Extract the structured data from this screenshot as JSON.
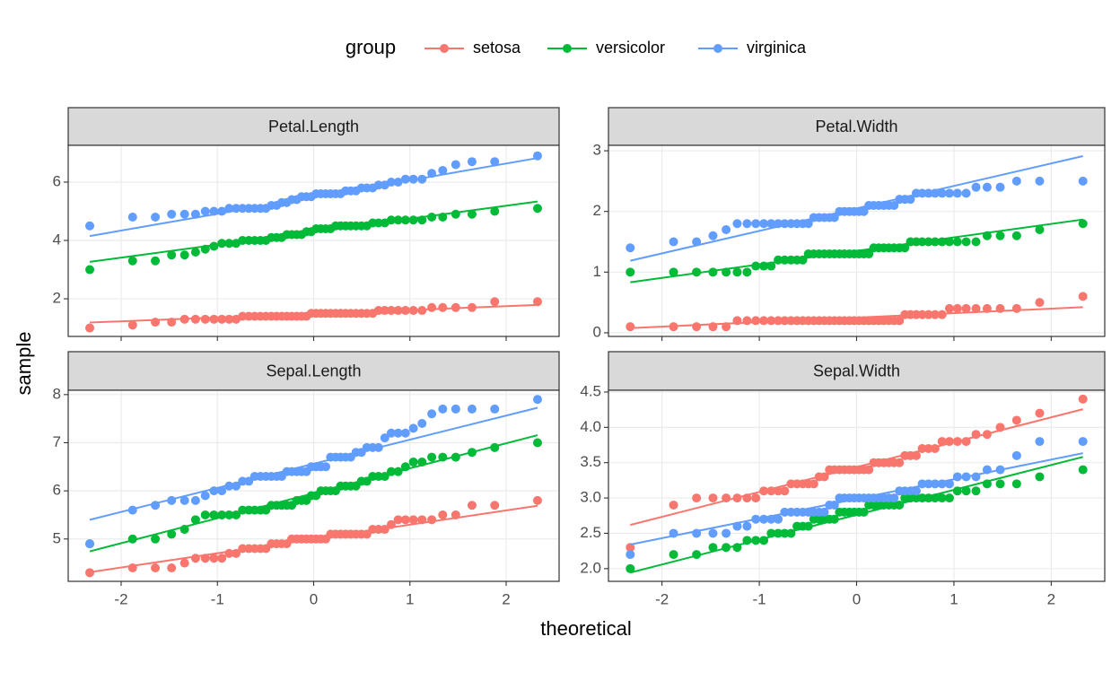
{
  "chart_data": {
    "type": "scatter",
    "legend_title": "group",
    "legend_position": "top",
    "grid": true,
    "xlabel": "theoretical",
    "ylabel": "sample",
    "xlim": [
      -2.55,
      2.55
    ],
    "xticks": [
      -2,
      -1,
      0,
      1,
      2
    ],
    "x": [
      -2.326,
      -1.881,
      -1.645,
      -1.476,
      -1.341,
      -1.227,
      -1.126,
      -1.036,
      -0.954,
      -0.878,
      -0.806,
      -0.739,
      -0.674,
      -0.613,
      -0.553,
      -0.496,
      -0.44,
      -0.385,
      -0.332,
      -0.279,
      -0.228,
      -0.176,
      -0.126,
      -0.075,
      -0.025,
      0.025,
      0.075,
      0.126,
      0.176,
      0.228,
      0.279,
      0.332,
      0.385,
      0.44,
      0.496,
      0.553,
      0.613,
      0.674,
      0.739,
      0.806,
      0.878,
      0.954,
      1.036,
      1.126,
      1.227,
      1.341,
      1.476,
      1.645,
      1.881,
      2.326
    ],
    "panels": [
      {
        "title": "Petal.Length",
        "ylim": [
          0.71,
          7.26
        ],
        "yticks": [
          2,
          4,
          6
        ],
        "series": [
          {
            "name": "setosa",
            "color": "#F8766D",
            "values": [
              1.0,
              1.1,
              1.2,
              1.2,
              1.3,
              1.3,
              1.3,
              1.3,
              1.3,
              1.3,
              1.3,
              1.4,
              1.4,
              1.4,
              1.4,
              1.4,
              1.4,
              1.4,
              1.4,
              1.4,
              1.4,
              1.4,
              1.4,
              1.4,
              1.5,
              1.5,
              1.5,
              1.5,
              1.5,
              1.5,
              1.5,
              1.5,
              1.5,
              1.5,
              1.5,
              1.5,
              1.5,
              1.6,
              1.6,
              1.6,
              1.6,
              1.6,
              1.6,
              1.6,
              1.7,
              1.7,
              1.7,
              1.7,
              1.9,
              1.9
            ]
          },
          {
            "name": "versicolor",
            "color": "#00BA38",
            "values": [
              3.0,
              3.3,
              3.3,
              3.5,
              3.5,
              3.6,
              3.7,
              3.8,
              3.9,
              3.9,
              3.9,
              4.0,
              4.0,
              4.0,
              4.0,
              4.0,
              4.1,
              4.1,
              4.1,
              4.2,
              4.2,
              4.2,
              4.2,
              4.3,
              4.3,
              4.4,
              4.4,
              4.4,
              4.4,
              4.5,
              4.5,
              4.5,
              4.5,
              4.5,
              4.5,
              4.5,
              4.6,
              4.6,
              4.6,
              4.7,
              4.7,
              4.7,
              4.7,
              4.7,
              4.8,
              4.8,
              4.9,
              4.9,
              5.0,
              5.1
            ]
          },
          {
            "name": "virginica",
            "color": "#619CFF",
            "values": [
              4.5,
              4.8,
              4.8,
              4.9,
              4.9,
              4.9,
              5.0,
              5.0,
              5.0,
              5.1,
              5.1,
              5.1,
              5.1,
              5.1,
              5.1,
              5.1,
              5.2,
              5.2,
              5.3,
              5.3,
              5.4,
              5.4,
              5.5,
              5.5,
              5.5,
              5.6,
              5.6,
              5.6,
              5.6,
              5.6,
              5.6,
              5.7,
              5.7,
              5.7,
              5.8,
              5.8,
              5.8,
              5.9,
              5.9,
              6.0,
              6.0,
              6.1,
              6.1,
              6.1,
              6.3,
              6.4,
              6.6,
              6.7,
              6.7,
              6.9
            ]
          }
        ]
      },
      {
        "title": "Petal.Width",
        "ylim": [
          -0.06,
          3.09
        ],
        "yticks": [
          0,
          1,
          2,
          3
        ],
        "series": [
          {
            "name": "setosa",
            "color": "#F8766D",
            "values": [
              0.1,
              0.1,
              0.1,
              0.1,
              0.1,
              0.2,
              0.2,
              0.2,
              0.2,
              0.2,
              0.2,
              0.2,
              0.2,
              0.2,
              0.2,
              0.2,
              0.2,
              0.2,
              0.2,
              0.2,
              0.2,
              0.2,
              0.2,
              0.2,
              0.2,
              0.2,
              0.2,
              0.2,
              0.2,
              0.2,
              0.2,
              0.2,
              0.2,
              0.2,
              0.3,
              0.3,
              0.3,
              0.3,
              0.3,
              0.3,
              0.3,
              0.4,
              0.4,
              0.4,
              0.4,
              0.4,
              0.4,
              0.4,
              0.5,
              0.6
            ]
          },
          {
            "name": "versicolor",
            "color": "#00BA38",
            "values": [
              1.0,
              1.0,
              1.0,
              1.0,
              1.0,
              1.0,
              1.0,
              1.1,
              1.1,
              1.1,
              1.2,
              1.2,
              1.2,
              1.2,
              1.2,
              1.3,
              1.3,
              1.3,
              1.3,
              1.3,
              1.3,
              1.3,
              1.3,
              1.3,
              1.3,
              1.3,
              1.3,
              1.3,
              1.4,
              1.4,
              1.4,
              1.4,
              1.4,
              1.4,
              1.4,
              1.5,
              1.5,
              1.5,
              1.5,
              1.5,
              1.5,
              1.5,
              1.5,
              1.5,
              1.5,
              1.6,
              1.6,
              1.6,
              1.7,
              1.8
            ]
          },
          {
            "name": "virginica",
            "color": "#619CFF",
            "values": [
              1.4,
              1.5,
              1.5,
              1.6,
              1.7,
              1.8,
              1.8,
              1.8,
              1.8,
              1.8,
              1.8,
              1.8,
              1.8,
              1.8,
              1.8,
              1.8,
              1.9,
              1.9,
              1.9,
              1.9,
              1.9,
              2.0,
              2.0,
              2.0,
              2.0,
              2.0,
              2.0,
              2.1,
              2.1,
              2.1,
              2.1,
              2.1,
              2.1,
              2.2,
              2.2,
              2.2,
              2.3,
              2.3,
              2.3,
              2.3,
              2.3,
              2.3,
              2.3,
              2.3,
              2.4,
              2.4,
              2.4,
              2.5,
              2.5,
              2.5
            ]
          }
        ]
      },
      {
        "title": "Sepal.Length",
        "ylim": [
          4.12,
          8.09
        ],
        "yticks": [
          5,
          6,
          7,
          8
        ],
        "series": [
          {
            "name": "setosa",
            "color": "#F8766D",
            "values": [
              4.3,
              4.4,
              4.4,
              4.4,
              4.5,
              4.6,
              4.6,
              4.6,
              4.6,
              4.7,
              4.7,
              4.8,
              4.8,
              4.8,
              4.8,
              4.8,
              4.9,
              4.9,
              4.9,
              4.9,
              5.0,
              5.0,
              5.0,
              5.0,
              5.0,
              5.0,
              5.0,
              5.0,
              5.1,
              5.1,
              5.1,
              5.1,
              5.1,
              5.1,
              5.1,
              5.1,
              5.2,
              5.2,
              5.2,
              5.3,
              5.4,
              5.4,
              5.4,
              5.4,
              5.4,
              5.5,
              5.5,
              5.7,
              5.7,
              5.8
            ]
          },
          {
            "name": "versicolor",
            "color": "#00BA38",
            "values": [
              4.9,
              5.0,
              5.0,
              5.1,
              5.2,
              5.4,
              5.5,
              5.5,
              5.5,
              5.5,
              5.5,
              5.6,
              5.6,
              5.6,
              5.6,
              5.6,
              5.7,
              5.7,
              5.7,
              5.7,
              5.7,
              5.8,
              5.8,
              5.8,
              5.9,
              5.9,
              6.0,
              6.0,
              6.0,
              6.0,
              6.1,
              6.1,
              6.1,
              6.1,
              6.2,
              6.2,
              6.3,
              6.3,
              6.3,
              6.4,
              6.4,
              6.5,
              6.6,
              6.6,
              6.7,
              6.7,
              6.7,
              6.8,
              6.9,
              7.0
            ]
          },
          {
            "name": "virginica",
            "color": "#619CFF",
            "values": [
              4.9,
              5.6,
              5.7,
              5.8,
              5.8,
              5.8,
              5.9,
              6.0,
              6.0,
              6.1,
              6.1,
              6.2,
              6.2,
              6.3,
              6.3,
              6.3,
              6.3,
              6.3,
              6.3,
              6.4,
              6.4,
              6.4,
              6.4,
              6.4,
              6.5,
              6.5,
              6.5,
              6.5,
              6.7,
              6.7,
              6.7,
              6.7,
              6.7,
              6.8,
              6.8,
              6.9,
              6.9,
              6.9,
              7.1,
              7.2,
              7.2,
              7.2,
              7.3,
              7.4,
              7.6,
              7.7,
              7.7,
              7.7,
              7.7,
              7.9
            ]
          }
        ]
      },
      {
        "title": "Sepal.Width",
        "ylim": [
          1.82,
          4.525
        ],
        "yticks": [
          {
            "value": 2,
            "label": "2.0"
          },
          2.5,
          {
            "value": 3,
            "label": "3.0"
          },
          3.5,
          {
            "value": 4,
            "label": "4.0"
          },
          4.5
        ],
        "series": [
          {
            "name": "setosa",
            "color": "#F8766D",
            "values": [
              2.3,
              2.9,
              3.0,
              3.0,
              3.0,
              3.0,
              3.0,
              3.0,
              3.1,
              3.1,
              3.1,
              3.1,
              3.2,
              3.2,
              3.2,
              3.2,
              3.2,
              3.3,
              3.3,
              3.4,
              3.4,
              3.4,
              3.4,
              3.4,
              3.4,
              3.4,
              3.4,
              3.4,
              3.5,
              3.5,
              3.5,
              3.5,
              3.5,
              3.5,
              3.6,
              3.6,
              3.6,
              3.7,
              3.7,
              3.7,
              3.8,
              3.8,
              3.8,
              3.8,
              3.9,
              3.9,
              4.0,
              4.1,
              4.2,
              4.4
            ]
          },
          {
            "name": "versicolor",
            "color": "#00BA38",
            "values": [
              2.0,
              2.2,
              2.2,
              2.3,
              2.3,
              2.3,
              2.4,
              2.4,
              2.4,
              2.5,
              2.5,
              2.5,
              2.5,
              2.6,
              2.6,
              2.6,
              2.7,
              2.7,
              2.7,
              2.7,
              2.7,
              2.8,
              2.8,
              2.8,
              2.8,
              2.8,
              2.8,
              2.9,
              2.9,
              2.9,
              2.9,
              2.9,
              2.9,
              2.9,
              3.0,
              3.0,
              3.0,
              3.0,
              3.0,
              3.0,
              3.0,
              3.0,
              3.1,
              3.1,
              3.1,
              3.2,
              3.2,
              3.2,
              3.3,
              3.4
            ]
          },
          {
            "name": "virginica",
            "color": "#619CFF",
            "values": [
              2.2,
              2.5,
              2.5,
              2.5,
              2.5,
              2.6,
              2.6,
              2.7,
              2.7,
              2.7,
              2.7,
              2.8,
              2.8,
              2.8,
              2.8,
              2.8,
              2.8,
              2.8,
              2.8,
              2.9,
              2.9,
              3.0,
              3.0,
              3.0,
              3.0,
              3.0,
              3.0,
              3.0,
              3.0,
              3.0,
              3.0,
              3.0,
              3.0,
              3.1,
              3.1,
              3.1,
              3.1,
              3.2,
              3.2,
              3.2,
              3.2,
              3.2,
              3.3,
              3.3,
              3.3,
              3.4,
              3.4,
              3.6,
              3.8,
              3.8
            ]
          }
        ]
      }
    ]
  }
}
